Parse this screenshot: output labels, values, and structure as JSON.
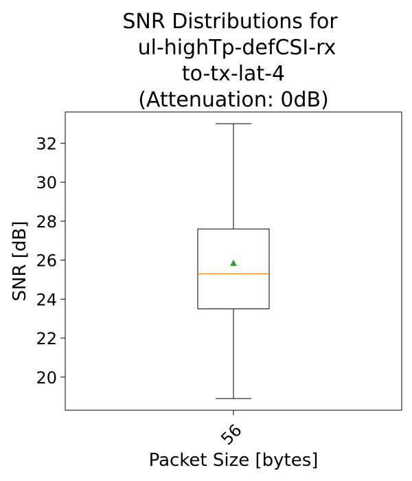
{
  "chart_data": {
    "type": "box",
    "title": [
      "SNR Distributions for",
      "ul-highTp-defCSI-rx",
      "to-tx-lat-4",
      "(Attenuation: 0dB)"
    ],
    "xlabel": "Packet Size [bytes]",
    "ylabel": "SNR [dB]",
    "categories": [
      "56"
    ],
    "ylim": [
      18.3,
      33.6
    ],
    "yticks": [
      20,
      22,
      24,
      26,
      28,
      30,
      32
    ],
    "grid": false,
    "boxes": [
      {
        "category": "56",
        "whisker_low": 18.9,
        "q1": 23.5,
        "median": 25.3,
        "q3": 27.6,
        "whisker_high": 33.0,
        "mean": 25.85
      }
    ],
    "colors": {
      "box": "#000000",
      "median": "#ff7f0e",
      "mean": "#2ca02c"
    }
  }
}
